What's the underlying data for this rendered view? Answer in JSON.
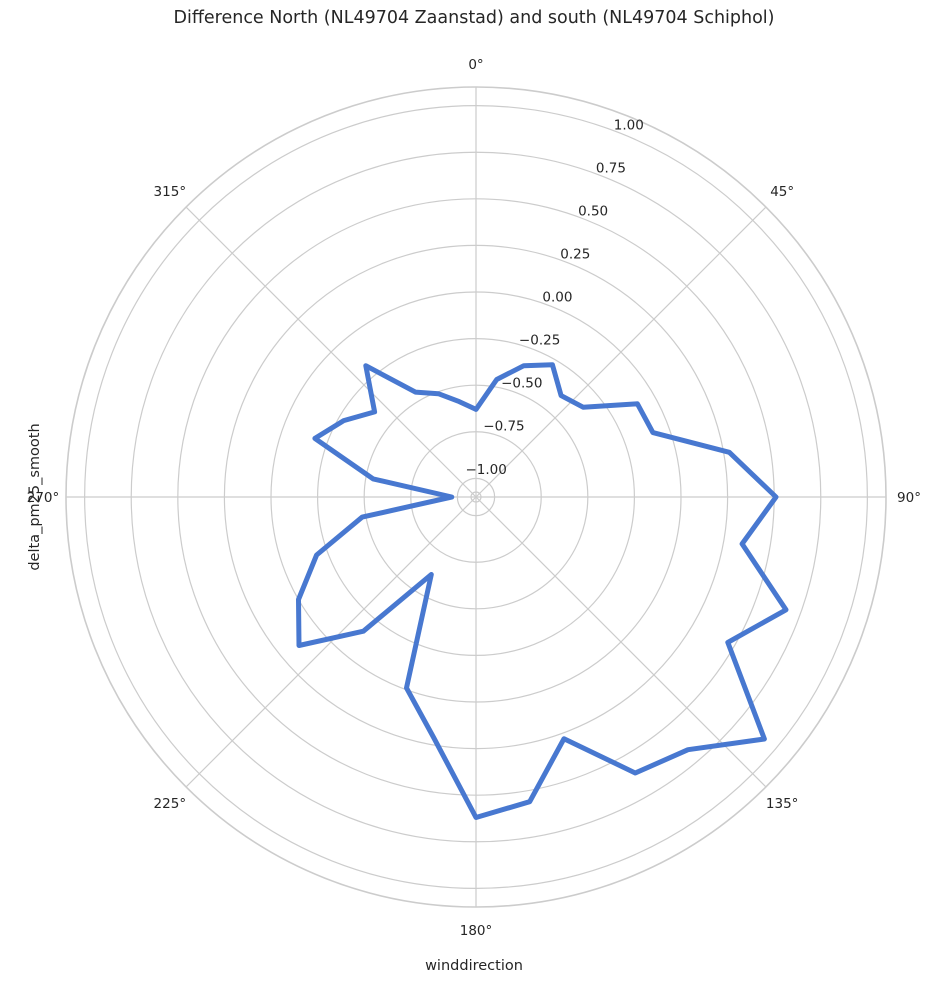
{
  "chart_data": {
    "type": "line",
    "projection": "polar",
    "title": "Difference North (NL49704 Zaanstad) and south (NL49704 Schiphol)",
    "xlabel": "winddirection",
    "ylabel": "delta_pm25_smooth",
    "theta_direction": "clockwise",
    "theta_zero": "top",
    "angle_ticks": [
      "0°",
      "45°",
      "90°",
      "135°",
      "180°",
      "225°",
      "270°",
      "315°"
    ],
    "angle_tick_values": [
      0,
      45,
      90,
      135,
      180,
      225,
      270,
      315
    ],
    "radial_ticks": [
      "−1.00",
      "−0.75",
      "−0.50",
      "−0.25",
      "0.00",
      "0.25",
      "0.50",
      "0.75",
      "1.00"
    ],
    "radial_tick_values": [
      -1.0,
      -0.75,
      -0.5,
      -0.25,
      0.0,
      0.25,
      0.5,
      0.75,
      1.0
    ],
    "rlim": [
      -1.1,
      1.1
    ],
    "grid": true,
    "series": [
      {
        "color": "#4878d0",
        "theta": [
          0,
          10,
          20,
          30,
          40,
          50,
          60,
          70,
          80,
          90,
          100,
          110,
          120,
          130,
          140,
          150,
          160,
          170,
          180,
          190,
          200,
          210,
          220,
          230,
          240,
          250,
          260,
          270,
          280,
          290,
          300,
          310,
          320,
          330,
          340,
          350,
          360
        ],
        "values": [
          -0.63,
          -0.46,
          -0.35,
          -0.28,
          -0.39,
          -0.35,
          -0.1,
          -0.09,
          0.28,
          0.51,
          0.35,
          0.67,
          0.46,
          0.92,
          0.67,
          0.61,
          0.28,
          0.56,
          0.62,
          0.21,
          -0.01,
          -0.62,
          -0.16,
          0.14,
          0.0,
          -0.19,
          -0.48,
          -0.97,
          -0.54,
          -0.18,
          -0.28,
          -0.39,
          -0.18,
          -0.45,
          -0.51,
          -0.58,
          -0.63
        ]
      }
    ]
  }
}
